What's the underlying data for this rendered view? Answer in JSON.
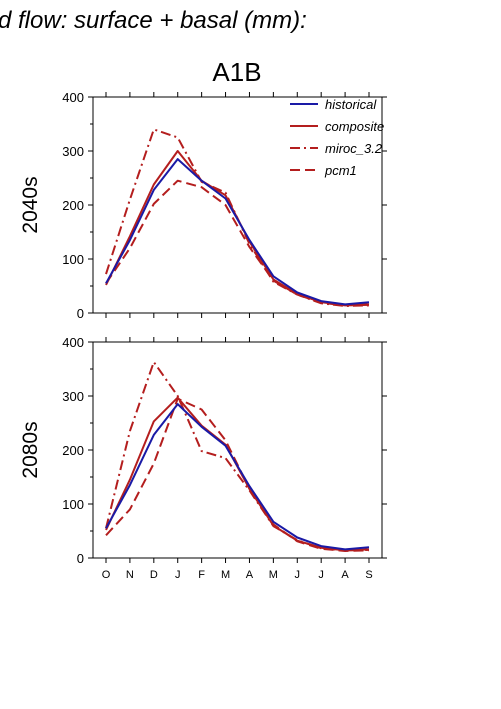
{
  "page": {
    "title": "d flow: surface + basal (mm):",
    "scenario": "A1B"
  },
  "colors": {
    "historical": "#1a1aa6",
    "composite": "#b41e1e",
    "miroc_3.2": "#b41e1e",
    "pcm1": "#b41e1e",
    "axis": "#000000"
  },
  "legend": {
    "labels": [
      "historical",
      "composite",
      "miroc_3.2",
      "pcm1"
    ]
  },
  "chart_data": [
    {
      "type": "line",
      "panel_label": "2040s",
      "categories": [
        "O",
        "N",
        "D",
        "J",
        "F",
        "M",
        "A",
        "M",
        "J",
        "J",
        "A",
        "S"
      ],
      "ylim": [
        0,
        400
      ],
      "yticks": [
        0,
        100,
        200,
        300,
        400
      ],
      "series": [
        {
          "name": "historical",
          "style": "solid",
          "values": [
            55,
            135,
            228,
            285,
            245,
            212,
            135,
            68,
            38,
            22,
            16,
            20
          ]
        },
        {
          "name": "composite",
          "style": "solid",
          "values": [
            52,
            142,
            238,
            300,
            245,
            218,
            132,
            62,
            35,
            20,
            15,
            16
          ]
        },
        {
          "name": "miroc_3.2",
          "style": "dash-dot",
          "values": [
            72,
            210,
            340,
            325,
            243,
            223,
            128,
            58,
            34,
            18,
            13,
            14
          ]
        },
        {
          "name": "pcm1",
          "style": "dashed",
          "values": [
            55,
            120,
            202,
            245,
            233,
            200,
            122,
            60,
            34,
            19,
            14,
            15
          ]
        }
      ]
    },
    {
      "type": "line",
      "panel_label": "2080s",
      "categories": [
        "O",
        "N",
        "D",
        "J",
        "F",
        "M",
        "A",
        "M",
        "J",
        "J",
        "A",
        "S"
      ],
      "ylim": [
        0,
        400
      ],
      "yticks": [
        0,
        100,
        200,
        300,
        400
      ],
      "series": [
        {
          "name": "historical",
          "style": "solid",
          "values": [
            55,
            135,
            228,
            285,
            243,
            208,
            133,
            67,
            38,
            22,
            16,
            20
          ]
        },
        {
          "name": "composite",
          "style": "solid",
          "values": [
            52,
            145,
            253,
            297,
            245,
            210,
            128,
            60,
            32,
            19,
            14,
            16
          ]
        },
        {
          "name": "miroc_3.2",
          "style": "dash-dot",
          "values": [
            55,
            235,
            363,
            300,
            198,
            185,
            125,
            59,
            33,
            18,
            14,
            15
          ]
        },
        {
          "name": "pcm1",
          "style": "dashed",
          "values": [
            42,
            90,
            175,
            295,
            275,
            218,
            128,
            62,
            31,
            17,
            13,
            14
          ]
        }
      ]
    }
  ]
}
